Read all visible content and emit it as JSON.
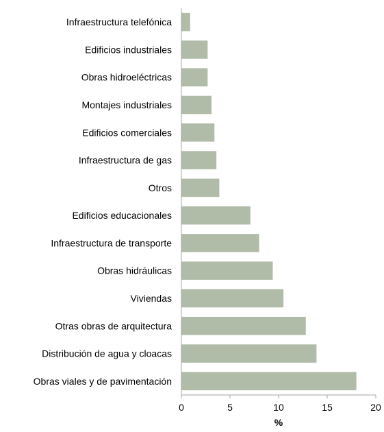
{
  "chart_data": {
    "type": "bar",
    "orientation": "horizontal",
    "title": "",
    "xlabel": "%",
    "ylabel": "",
    "categories": [
      "Infraestructura telefónica",
      "Edificios industriales",
      "Obras hidroeléctricas",
      "Montajes industriales",
      "Edificios comerciales",
      "Infraestructura de gas",
      "Otros",
      "Edificios educacionales",
      "Infraestructura de transporte",
      "Obras hidráulicas",
      "Viviendas",
      "Otras obras de arquitectura",
      "Distribución de agua y cloacas",
      "Obras viales y de pavimentación"
    ],
    "values": [
      0.9,
      2.7,
      2.7,
      3.1,
      3.4,
      3.6,
      3.9,
      7.1,
      8.0,
      9.4,
      10.5,
      12.8,
      13.9,
      18.0
    ],
    "xlim": [
      0,
      20
    ],
    "xticks": [
      "0",
      "5",
      "10",
      "15",
      "20"
    ],
    "grid": false,
    "legend": "none",
    "bar_color": "#b0bca8",
    "axis_color": "#a6a6a6"
  }
}
